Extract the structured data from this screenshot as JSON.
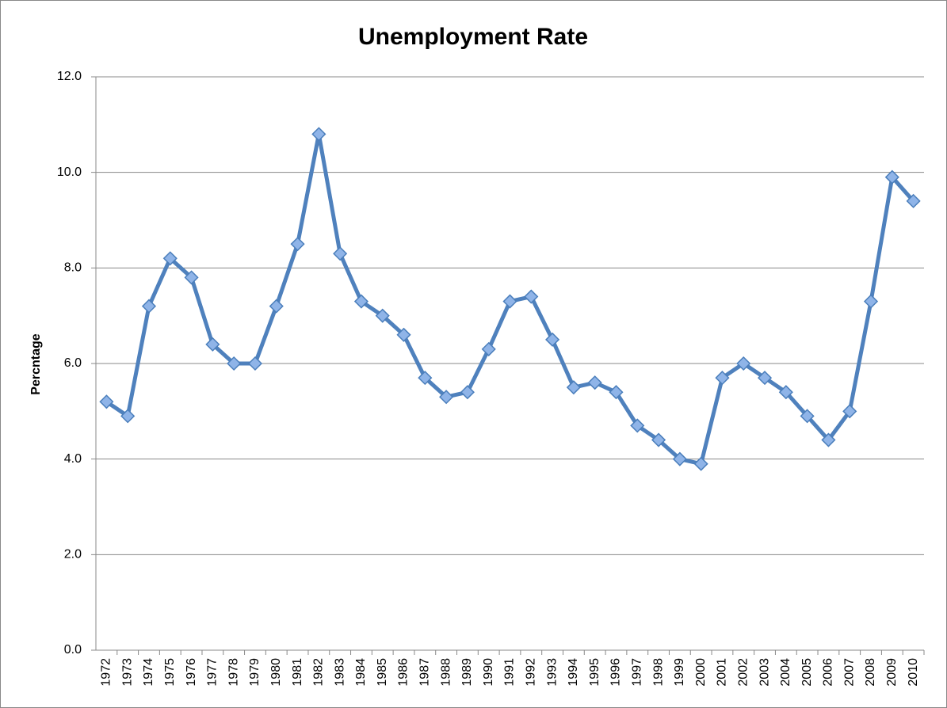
{
  "chart_data": {
    "type": "line",
    "title": "Unemployment Rate",
    "y_label": "Percntage",
    "categories": [
      "1972",
      "1973",
      "1974",
      "1975",
      "1976",
      "1977",
      "1978",
      "1979",
      "1980",
      "1981",
      "1982",
      "1983",
      "1984",
      "1985",
      "1986",
      "1987",
      "1988",
      "1989",
      "1990",
      "1991",
      "1992",
      "1993",
      "1994",
      "1995",
      "1996",
      "1997",
      "1998",
      "1999",
      "2000",
      "2001",
      "2002",
      "2003",
      "2004",
      "2005",
      "2006",
      "2007",
      "2008",
      "2009",
      "2010"
    ],
    "values": [
      5.2,
      4.9,
      7.2,
      8.2,
      7.8,
      6.4,
      6.0,
      6.0,
      7.2,
      8.5,
      10.8,
      8.3,
      7.3,
      7.0,
      6.6,
      5.7,
      5.3,
      5.4,
      6.3,
      7.3,
      7.4,
      6.5,
      5.5,
      5.6,
      5.4,
      4.7,
      4.4,
      4.0,
      3.9,
      5.7,
      6.0,
      5.7,
      5.4,
      4.9,
      4.4,
      5.0,
      7.3,
      9.9,
      9.4
    ],
    "color": "#4f81bd",
    "ylim": [
      0,
      12
    ],
    "yticks": [
      {
        "value": 0,
        "label": "0.0"
      },
      {
        "value": 2,
        "label": "2.0"
      },
      {
        "value": 4,
        "label": "4.0"
      },
      {
        "value": 6,
        "label": "6.0"
      },
      {
        "value": 8,
        "label": "8.0"
      },
      {
        "value": 10,
        "label": "10.0"
      },
      {
        "value": 12,
        "label": "12.0"
      }
    ],
    "grid": true
  }
}
